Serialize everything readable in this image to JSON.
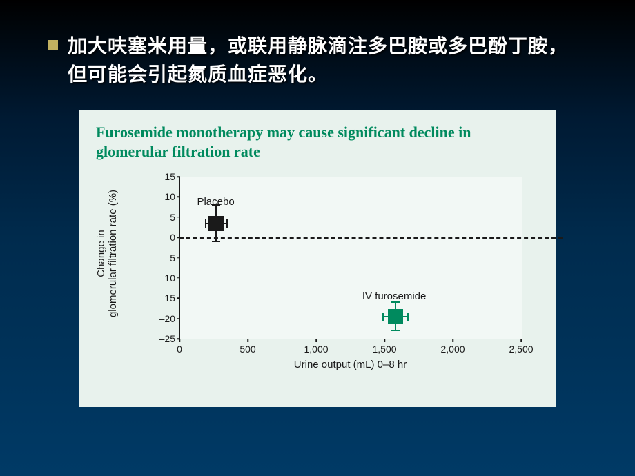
{
  "bullet": {
    "text": "加大呋塞米用量，或联用静脉滴注多巴胺或多巴酚丁胺，但可能会引起氮质血症恶化。"
  },
  "chart": {
    "type": "scatter-with-error",
    "title": "Furosemide monotherapy may cause significant decline in glomerular filtration rate",
    "panel_bg": "#e8f2ed",
    "plot_bg": "#f2f8f5",
    "axis_color": "#1a1a1a",
    "title_color": "#008a5e",
    "title_fontsize": 22,
    "tick_fontsize": 14,
    "label_fontsize": 15,
    "xlabel": "Urine output (mL) 0–8 hr",
    "ylabel_line1": "Change in",
    "ylabel_line2": "glomerular filtration rate (%)",
    "xlim": [
      0,
      2500
    ],
    "ylim": [
      -25,
      15
    ],
    "xticks": [
      0,
      500,
      1000,
      1500,
      2000,
      2500
    ],
    "xtick_labels": [
      "0",
      "500",
      "1,000",
      "1,500",
      "2,000",
      "2,500"
    ],
    "yticks": [
      15,
      10,
      5,
      0,
      -5,
      -10,
      -15,
      -20,
      -25
    ],
    "ytick_labels": [
      "15",
      "10",
      "5",
      "0",
      "–5",
      "–10",
      "–15",
      "–20",
      "–25"
    ],
    "zero_y": 0,
    "series": [
      {
        "name": "placebo",
        "label": "Placebo",
        "x": 270,
        "y": 3.5,
        "x_err": 80,
        "y_err": 4.5,
        "color": "#1a1a1a",
        "label_dx": -28,
        "label_dy": -40
      },
      {
        "name": "iv-furosemide",
        "label": "IV furosemide",
        "x": 1580,
        "y": -19.5,
        "x_err": 90,
        "y_err": 3.5,
        "color": "#008a5e",
        "label_dx": -48,
        "label_dy": -38
      }
    ]
  }
}
